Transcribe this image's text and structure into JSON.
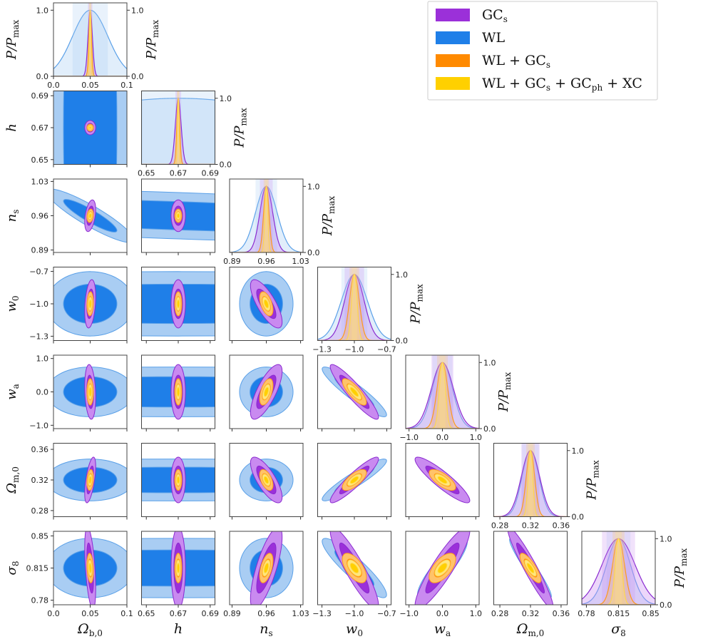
{
  "chart_data": {
    "type": "corner",
    "params": [
      "Ω_b,0",
      "h",
      "n_s",
      "w_0",
      "w_a",
      "Ω_m,0",
      "σ_8"
    ],
    "param_labels": [
      {
        "main": "Ω",
        "sub": "b,0"
      },
      {
        "main": "h",
        "sub": ""
      },
      {
        "main": "n",
        "sub": "s"
      },
      {
        "main": "w",
        "sub": "0"
      },
      {
        "main": "w",
        "sub": "a"
      },
      {
        "main": "Ω",
        "sub": "m,0"
      },
      {
        "main": "σ",
        "sub": "8"
      }
    ],
    "ranges": [
      [
        0.0,
        0.1
      ],
      [
        0.647,
        0.693
      ],
      [
        0.885,
        1.035
      ],
      [
        -1.34,
        -0.66
      ],
      [
        -1.1,
        1.1
      ],
      [
        0.272,
        0.368
      ],
      [
        0.775,
        0.855
      ]
    ],
    "ticks": [
      [
        0.0,
        0.05,
        0.1
      ],
      [
        0.65,
        0.67,
        0.69
      ],
      [
        0.89,
        0.96,
        1.03
      ],
      [
        -1.3,
        -1.0,
        -0.7
      ],
      [
        -1.0,
        0.0,
        1.0
      ],
      [
        0.28,
        0.32,
        0.36
      ],
      [
        0.78,
        0.815,
        0.85
      ]
    ],
    "tick_labels": [
      [
        "0.0",
        "0.05",
        "0.1"
      ],
      [
        "0.65",
        "0.67",
        "0.69"
      ],
      [
        "0.89",
        "0.96",
        "1.03"
      ],
      [
        "−1.3",
        "−1.0",
        "−0.7"
      ],
      [
        "−1.0",
        "0.0",
        "1.0"
      ],
      [
        "0.28",
        "0.32",
        "0.36"
      ],
      [
        "0.78",
        "0.815",
        "0.85"
      ]
    ],
    "fiducial": [
      0.05,
      0.67,
      0.96,
      -1.0,
      0.0,
      0.32,
      0.815
    ],
    "diag_ylabel": "P/P_max",
    "diag_ylabel_parts": {
      "main": "P/P",
      "sub": "max"
    },
    "diag_yticks": [
      "0.0",
      "1.0"
    ],
    "series": [
      {
        "name": "GC_s",
        "label_main": "GC",
        "label_sub": "s",
        "color_dark": "#9b30d9",
        "color_light": "#c98af0",
        "outline": "#8a2ad0",
        "sigma": [
          0.003,
          0.0018,
          0.013,
          0.09,
          0.33,
          0.012,
          0.018
        ],
        "corr": {
          "0-1": 0.0,
          "0-2": 0.4,
          "0-3": 0.3,
          "0-4": -0.2,
          "0-5": 0.6,
          "0-6": -0.5,
          "1-2": 0.0,
          "1-3": 0.0,
          "1-4": 0.0,
          "1-5": 0.0,
          "1-6": 0.0,
          "2-3": -0.75,
          "2-4": 0.75,
          "2-5": -0.75,
          "2-6": 0.75,
          "3-4": -0.92,
          "3-5": 0.92,
          "3-6": -0.9,
          "4-5": -0.9,
          "4-6": 0.9,
          "5-6": -0.95
        }
      },
      {
        "name": "WL",
        "label_main": "WL",
        "label_sub": "",
        "color_dark": "#1f7fe8",
        "color_light": "#a9cdf3",
        "outline": "#5aa0e8",
        "sigma": [
          0.024,
          0.1,
          0.022,
          0.12,
          0.3,
          0.011,
          0.013
        ],
        "corr": {
          "0-1": 0.0,
          "0-2": -0.9,
          "0-3": 0.0,
          "0-4": 0.0,
          "0-5": 0.0,
          "0-6": 0.0,
          "1-2": -0.5,
          "1-3": 0.0,
          "1-4": 0.0,
          "1-5": 0.0,
          "1-6": 0.0,
          "2-3": 0.0,
          "2-4": 0.0,
          "2-5": 0.0,
          "2-6": 0.0,
          "3-4": -0.92,
          "3-5": 0.92,
          "3-6": -0.9,
          "4-5": -0.88,
          "4-6": 0.88,
          "5-6": -0.95
        }
      },
      {
        "name": "WL + GC_s",
        "label_main": "WL + GC",
        "label_sub": "s",
        "color_dark": "#ff8a00",
        "color_light": "#ffc36a",
        "outline": "#ff9a1a",
        "sigma": [
          0.0018,
          0.0009,
          0.0055,
          0.045,
          0.16,
          0.0055,
          0.0065
        ],
        "corr": {
          "0-1": 0.0,
          "0-2": 0.2,
          "0-3": 0.1,
          "0-4": 0.0,
          "0-5": 0.2,
          "0-6": -0.2,
          "1-2": 0.0,
          "1-3": 0.0,
          "1-4": 0.0,
          "1-5": 0.0,
          "1-6": 0.0,
          "2-3": -0.5,
          "2-4": 0.5,
          "2-5": -0.5,
          "2-6": 0.5,
          "3-4": -0.8,
          "3-5": 0.7,
          "3-6": -0.6,
          "4-5": -0.7,
          "4-6": 0.6,
          "5-6": -0.8
        }
      },
      {
        "name": "WL + GC_s + GC_ph + XC",
        "label_main": "WL + GC",
        "label_sub": "s",
        "label_tail": " + GC",
        "label_sub2": "ph",
        "label_end": " + XC",
        "color_dark": "#ffd000",
        "color_light": "#ffe680",
        "outline": "#ffd84d",
        "sigma": [
          0.001,
          0.0005,
          0.003,
          0.025,
          0.09,
          0.003,
          0.0035
        ],
        "corr": {
          "0-1": 0.0,
          "0-2": 0.2,
          "0-3": 0.1,
          "0-4": 0.0,
          "0-5": 0.2,
          "0-6": -0.2,
          "1-2": 0.0,
          "1-3": 0.0,
          "1-4": 0.0,
          "1-5": 0.0,
          "1-6": 0.0,
          "2-3": -0.5,
          "2-4": 0.5,
          "2-5": -0.5,
          "2-6": 0.5,
          "3-4": -0.8,
          "3-5": 0.7,
          "3-6": -0.6,
          "4-5": -0.7,
          "4-6": 0.6,
          "5-6": -0.8
        }
      }
    ]
  }
}
